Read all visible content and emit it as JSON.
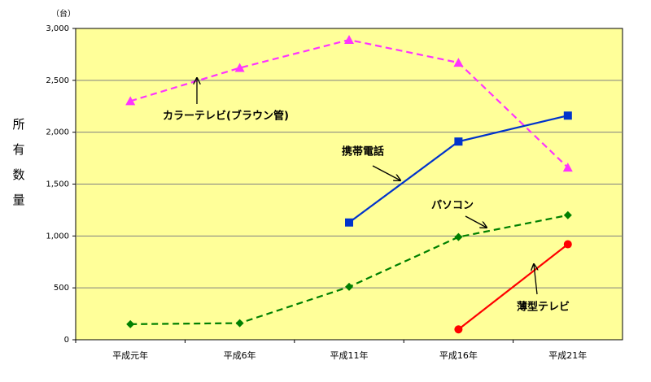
{
  "chart_data": {
    "type": "line",
    "y_label": "所有数量",
    "y_unit": "（台）",
    "categories": [
      "平成元年",
      "平成6年",
      "平成11年",
      "平成16年",
      "平成21年"
    ],
    "series": [
      {
        "name": "カラーテレビ(ブラウン管)",
        "color": "#ff33ff",
        "style": "dashed",
        "marker": "triangle",
        "values": [
          2300,
          2620,
          2890,
          2670,
          1660
        ]
      },
      {
        "name": "携帯電話",
        "color": "#0033cc",
        "style": "solid",
        "marker": "square",
        "values": [
          null,
          null,
          1130,
          1910,
          2160
        ]
      },
      {
        "name": "パソコン",
        "color": "#008000",
        "style": "dashed",
        "marker": "diamond",
        "values": [
          150,
          160,
          510,
          990,
          1200
        ]
      },
      {
        "name": "薄型テレビ",
        "color": "#ff0000",
        "style": "solid",
        "marker": "circle",
        "values": [
          null,
          null,
          null,
          100,
          920
        ]
      }
    ],
    "ylim": [
      0,
      3000
    ],
    "yticks": [
      0,
      500,
      {
        "value": 1000,
        "label": "1,000"
      },
      {
        "value": 1500,
        "label": "1,500"
      },
      {
        "value": 2000,
        "label": "2,000"
      },
      {
        "value": 2500,
        "label": "2,500"
      },
      {
        "value": 3000,
        "label": "3,000"
      }
    ],
    "grid": true,
    "plot_background": "#ffff99"
  }
}
